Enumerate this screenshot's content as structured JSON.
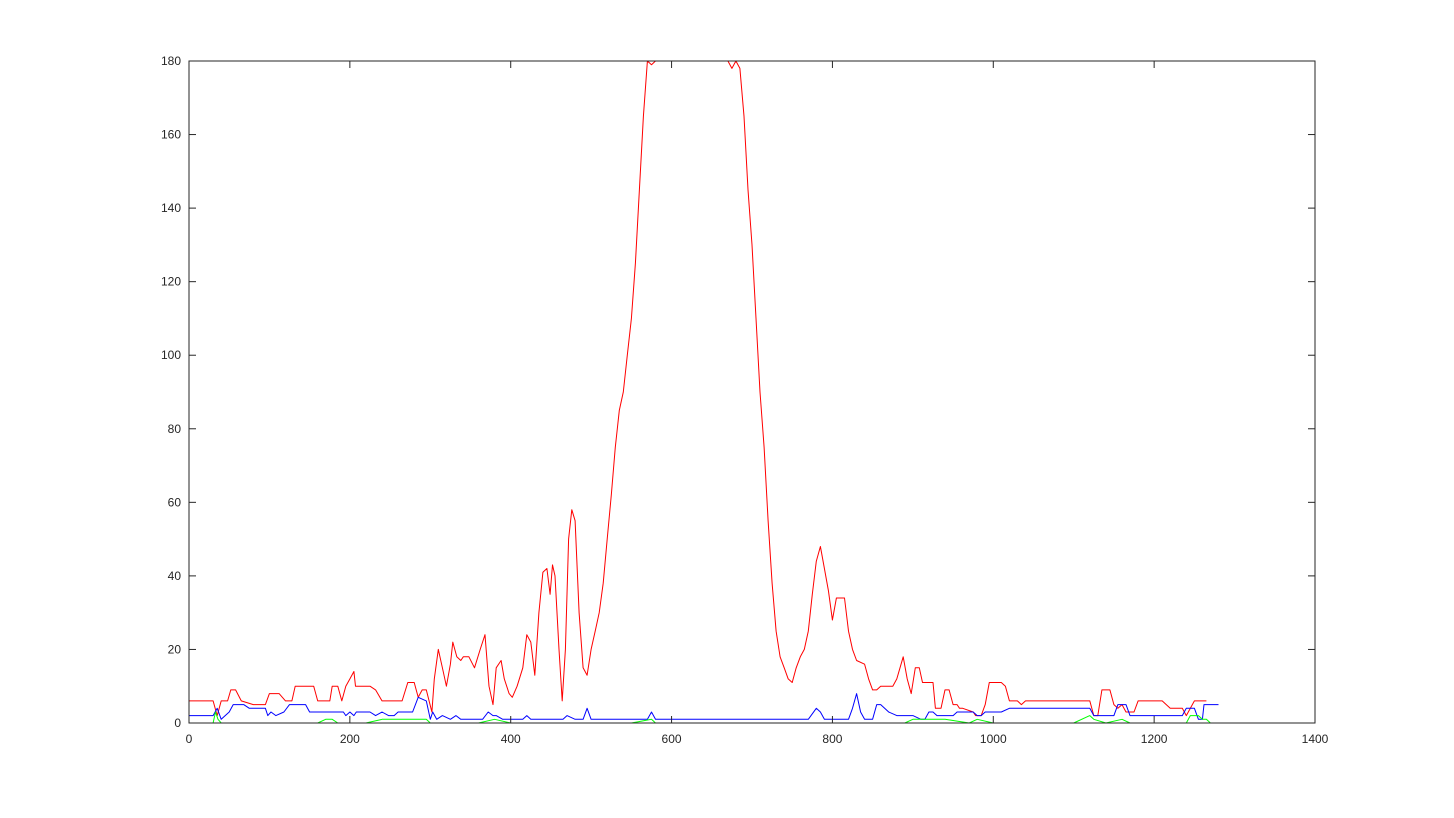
{
  "chart_data": {
    "type": "line",
    "title": "",
    "xlabel": "",
    "ylabel": "",
    "xlim": [
      0,
      1400
    ],
    "ylim": [
      0,
      180
    ],
    "x_ticks": [
      "0",
      "200",
      "400",
      "600",
      "800",
      "1000",
      "1200",
      "1400"
    ],
    "y_ticks": [
      "0",
      "20",
      "40",
      "60",
      "80",
      "100",
      "120",
      "140",
      "160",
      "180"
    ],
    "grid": false,
    "legend": "none",
    "series": [
      {
        "color": "#ff0000",
        "x": [
          0,
          30,
          35,
          40,
          48,
          52,
          58,
          65,
          80,
          95,
          100,
          112,
          120,
          128,
          132,
          138,
          155,
          160,
          162,
          175,
          178,
          185,
          190,
          195,
          200,
          205,
          207,
          212,
          225,
          232,
          240,
          247,
          265,
          272,
          275,
          280,
          285,
          290,
          295,
          302,
          305,
          310,
          315,
          320,
          325,
          328,
          333,
          338,
          341,
          348,
          355,
          362,
          368,
          373,
          378,
          382,
          388,
          392,
          398,
          402,
          408,
          415,
          420,
          425,
          430,
          435,
          440,
          445,
          449,
          452,
          455,
          460,
          464,
          468,
          472,
          476,
          480,
          485,
          490,
          495,
          500,
          505,
          510,
          515,
          520,
          525,
          530,
          535,
          540,
          545,
          550,
          555,
          560,
          565,
          570,
          575,
          580,
          600,
          620,
          650,
          670,
          675,
          680,
          685,
          690,
          695,
          700,
          705,
          710,
          715,
          720,
          725,
          730,
          735,
          740,
          745,
          750,
          755,
          760,
          765,
          770,
          775,
          780,
          785,
          790,
          795,
          800,
          805,
          815,
          820,
          825,
          830,
          840,
          845,
          850,
          855,
          860,
          875,
          880,
          888,
          893,
          898,
          903,
          908,
          912,
          925,
          928,
          935,
          940,
          945,
          950,
          955,
          958,
          962,
          975,
          978,
          985,
          990,
          995,
          1010,
          1015,
          1020,
          1030,
          1035,
          1040,
          1050,
          1075,
          1120,
          1125,
          1130,
          1135,
          1145,
          1150,
          1155,
          1160,
          1165,
          1175,
          1180,
          1198,
          1210,
          1220,
          1235,
          1240,
          1250,
          1265
        ],
        "y": [
          6,
          6,
          2,
          6,
          6,
          9,
          9,
          6,
          5,
          5,
          8,
          8,
          6,
          6,
          10,
          10,
          10,
          6,
          6,
          6,
          10,
          10,
          6,
          10,
          12,
          14,
          10,
          10,
          10,
          9,
          6,
          6,
          6,
          11,
          11,
          11,
          7,
          9,
          9,
          3,
          12,
          20,
          15,
          10,
          16,
          22,
          18,
          17,
          18,
          18,
          15,
          20,
          24,
          10,
          5,
          15,
          17,
          12,
          8,
          7,
          10,
          15,
          24,
          22,
          13,
          30,
          41,
          42,
          35,
          43,
          40,
          20,
          6,
          20,
          50,
          58,
          55,
          30,
          15,
          13,
          20,
          25,
          30,
          38,
          50,
          62,
          75,
          85,
          90,
          100,
          110,
          125,
          145,
          165,
          180,
          179,
          180,
          180,
          180,
          180,
          180,
          178,
          180,
          178,
          165,
          145,
          130,
          110,
          90,
          75,
          55,
          38,
          25,
          18,
          15,
          12,
          11,
          15,
          18,
          20,
          25,
          35,
          44,
          48,
          42,
          36,
          28,
          34,
          34,
          25,
          20,
          17,
          16,
          12,
          9,
          9,
          10,
          10,
          12,
          18,
          12,
          8,
          15,
          15,
          11,
          11,
          4,
          4,
          9,
          9,
          5,
          5,
          4,
          4,
          3,
          2,
          2,
          5,
          11,
          11,
          10,
          6,
          6,
          5,
          6,
          6,
          6,
          6,
          2,
          2,
          9,
          9,
          5,
          4,
          5,
          3,
          3,
          6,
          6,
          6,
          4,
          4,
          2,
          6,
          6
        ]
      },
      {
        "color": "#0000ff",
        "x": [
          0,
          30,
          35,
          40,
          50,
          55,
          68,
          75,
          95,
          98,
          102,
          108,
          118,
          125,
          130,
          145,
          150,
          170,
          192,
          195,
          200,
          205,
          208,
          225,
          232,
          240,
          248,
          255,
          260,
          278,
          285,
          295,
          300,
          303,
          308,
          315,
          325,
          332,
          338,
          348,
          355,
          360,
          365,
          372,
          378,
          382,
          390,
          400,
          408,
          415,
          420,
          425,
          430,
          440,
          450,
          455,
          465,
          470,
          480,
          490,
          495,
          500,
          520,
          560,
          570,
          575,
          580,
          620,
          660,
          700,
          740,
          745,
          750,
          770,
          780,
          785,
          790,
          800,
          820,
          825,
          830,
          835,
          840,
          850,
          855,
          860,
          870,
          880,
          890,
          900,
          910,
          915,
          920,
          925,
          930,
          950,
          955,
          975,
          980,
          985,
          990,
          1000,
          1010,
          1020,
          1025,
          1030,
          1045,
          1050,
          1120,
          1125,
          1130,
          1150,
          1155,
          1165,
          1170,
          1185,
          1235,
          1240,
          1250,
          1255,
          1260,
          1262,
          1270,
          1280
        ],
        "y": [
          2,
          2,
          4,
          1,
          3,
          5,
          5,
          4,
          4,
          2,
          3,
          2,
          3,
          5,
          5,
          5,
          3,
          3,
          3,
          2,
          3,
          2,
          3,
          3,
          2,
          3,
          2,
          2,
          3,
          3,
          7,
          6,
          1,
          3,
          1,
          2,
          1,
          2,
          1,
          1,
          1,
          1,
          1,
          3,
          2,
          2,
          1,
          1,
          1,
          1,
          2,
          1,
          1,
          1,
          1,
          1,
          1,
          2,
          1,
          1,
          4,
          1,
          1,
          1,
          1,
          3,
          1,
          1,
          1,
          1,
          1,
          1,
          1,
          1,
          4,
          3,
          1,
          1,
          1,
          4,
          8,
          3,
          1,
          1,
          5,
          5,
          3,
          2,
          2,
          2,
          1,
          1,
          3,
          3,
          2,
          2,
          3,
          3,
          2,
          2,
          3,
          3,
          3,
          4,
          4,
          4,
          4,
          4,
          4,
          2,
          2,
          2,
          5,
          5,
          2,
          2,
          2,
          4,
          4,
          1,
          1,
          5,
          5,
          5
        ]
      },
      {
        "color": "#00ff00",
        "x": [
          0,
          30,
          33,
          36,
          40,
          60,
          100,
          160,
          170,
          178,
          185,
          200,
          220,
          240,
          270,
          295,
          300,
          340,
          360,
          380,
          400,
          420,
          460,
          500,
          550,
          575,
          580,
          600,
          700,
          720,
          750,
          800,
          820,
          840,
          890,
          900,
          920,
          940,
          970,
          980,
          1000,
          1100,
          1120,
          1125,
          1140,
          1160,
          1170,
          1200,
          1240,
          1245,
          1255,
          1260,
          1265,
          1270
        ],
        "y": [
          0,
          0,
          3,
          1,
          0,
          0,
          0,
          0,
          1,
          1,
          0,
          0,
          0,
          1,
          1,
          1,
          0,
          0,
          0,
          1,
          0,
          0,
          0,
          0,
          0,
          1,
          0,
          0,
          0,
          0,
          0,
          0,
          0,
          0,
          0,
          1,
          1,
          1,
          0,
          1,
          0,
          0,
          2,
          1,
          0,
          1,
          0,
          0,
          0,
          2,
          2,
          1,
          1,
          0
        ]
      }
    ]
  }
}
